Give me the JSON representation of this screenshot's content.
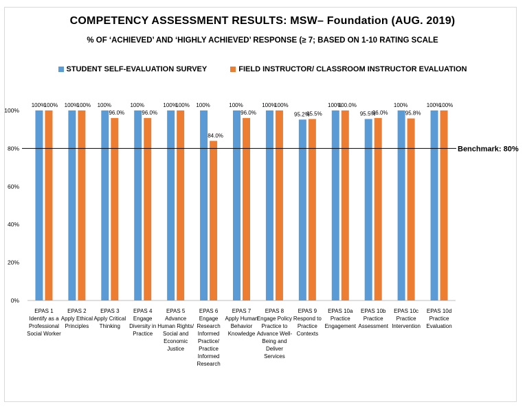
{
  "chart_data": {
    "type": "bar",
    "title": "COMPETENCY ASSESSMENT RESULTS: MSW– Foundation (AUG. 2019)",
    "subtitle": "% OF ‘ACHIEVED’ AND ‘HIGHLY ACHIEVED’ RESPONSE (≥ 7; BASED ON 1-10 RATING SCALE",
    "ylim": [
      0,
      100
    ],
    "yticks": [
      "0%",
      "20%",
      "40%",
      "60%",
      "80%",
      "100%"
    ],
    "ytick_values": [
      0,
      20,
      40,
      60,
      80,
      100
    ],
    "legend_position": "top",
    "grid": false,
    "categories": [
      [
        "EPAS 1",
        "Identify as a",
        "Professional",
        "Social Worker"
      ],
      [
        "EPAS 2",
        "Apply Ethical",
        "Principles"
      ],
      [
        "EPAS 3",
        "Apply Critical",
        "Thinking"
      ],
      [
        "EPAS 4",
        "Engage",
        "Diversity in",
        "Practice"
      ],
      [
        "EPAS 5",
        "Advance",
        "Human Rights/",
        "Social and",
        "Economic",
        "Justice"
      ],
      [
        "EPAS 6",
        "Engage",
        "Research",
        "Informed",
        "Practice/",
        "Practice",
        "Informed",
        "Research"
      ],
      [
        "EPAS 7",
        "Apply Human",
        "Behavior",
        "Knowledge"
      ],
      [
        "EPAS 8",
        "Engage Policy",
        "Practice to",
        "Advance Well-",
        "Being and",
        "Deliver",
        "Services"
      ],
      [
        "EPAS 9",
        "Respond to",
        "Practice",
        "Contexts"
      ],
      [
        "EPAS 10a",
        "Practice",
        "Engagement"
      ],
      [
        "EPAS 10b",
        "Practice",
        "Assessment"
      ],
      [
        "EPAS 10c",
        "Practice",
        "Intervention"
      ],
      [
        "EPAS 10d",
        "Practice",
        "Evaluation"
      ]
    ],
    "series": [
      {
        "name": "STUDENT SELF-EVALUATION SURVEY",
        "color": "#5B9BD5",
        "values": [
          100,
          100,
          100,
          100,
          100,
          100,
          100,
          100,
          95.2,
          100,
          95.5,
          100,
          100
        ],
        "labels": [
          "100%",
          "100%",
          "100%",
          "100%",
          "100%",
          "100%",
          "100%",
          "100%",
          "95.2%",
          "100%",
          "95.5%",
          "100%",
          "100%"
        ]
      },
      {
        "name": "FIELD INSTRUCTOR/ CLASSROOM INSTRUCTOR EVALUATION",
        "color": "#ED7D31",
        "values": [
          100,
          100,
          96.0,
          96.0,
          100,
          84.0,
          96.0,
          100,
          95.5,
          100.0,
          96.0,
          95.8,
          100
        ],
        "labels": [
          "100%",
          "100%",
          "96.0%",
          "96.0%",
          "100%",
          "84.0%",
          "96.0%",
          "100%",
          "95.5%",
          "100.0%",
          "96.0%",
          "95.8%",
          "100%"
        ]
      }
    ],
    "benchmark": {
      "value": 80,
      "label": "Benchmark: 80%"
    }
  }
}
